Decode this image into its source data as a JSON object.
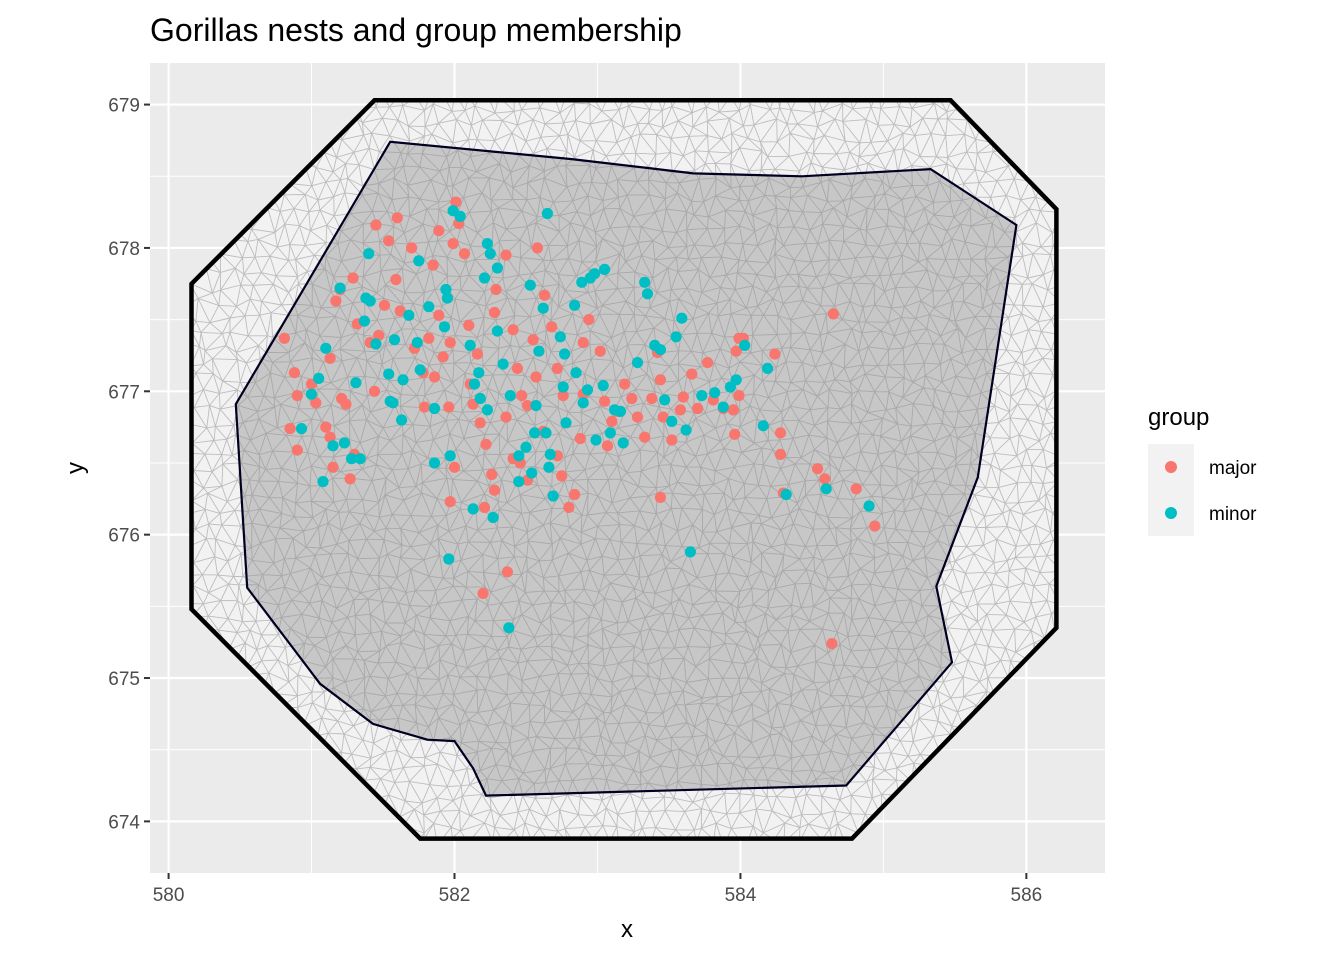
{
  "chart_data": {
    "type": "scatter",
    "title": "Gorillas nests and group membership",
    "xlabel": "x",
    "ylabel": "y",
    "xlim": [
      579.87,
      586.55
    ],
    "ylim": [
      673.64,
      679.29
    ],
    "x_ticks": [
      580,
      582,
      584,
      586
    ],
    "y_ticks": [
      674,
      675,
      676,
      677,
      678,
      679
    ],
    "x_tick_labels": [
      "580",
      "582",
      "584",
      "586"
    ],
    "y_tick_labels": [
      "674",
      "675",
      "676",
      "677",
      "678",
      "679"
    ],
    "grid": true,
    "legend": {
      "title": "group",
      "position": "right",
      "entries": [
        {
          "label": "major",
          "color": "#F8766D"
        },
        {
          "label": "minor",
          "color": "#00BFC4"
        }
      ]
    },
    "outer_boundary": [
      [
        580.16,
        677.75
      ],
      [
        581.44,
        679.03
      ],
      [
        585.47,
        679.03
      ],
      [
        586.21,
        678.27
      ],
      [
        586.21,
        675.35
      ],
      [
        584.78,
        673.88
      ],
      [
        581.76,
        673.88
      ],
      [
        580.16,
        675.48
      ]
    ],
    "inner_region": [
      [
        580.47,
        676.91
      ],
      [
        581.55,
        678.74
      ],
      [
        582.82,
        678.62
      ],
      [
        583.67,
        678.52
      ],
      [
        584.43,
        678.5
      ],
      [
        585.33,
        678.55
      ],
      [
        585.93,
        678.16
      ],
      [
        585.66,
        676.4
      ],
      [
        585.37,
        675.64
      ],
      [
        585.48,
        675.11
      ],
      [
        584.74,
        674.25
      ],
      [
        582.22,
        674.18
      ],
      [
        582.13,
        674.37
      ],
      [
        582.0,
        674.56
      ],
      [
        581.81,
        674.57
      ],
      [
        581.43,
        674.68
      ],
      [
        581.06,
        674.96
      ],
      [
        580.55,
        675.63
      ]
    ],
    "series": [
      {
        "name": "major",
        "color": "#F8766D",
        "points": [
          [
            580.81,
            677.37
          ],
          [
            580.88,
            677.13
          ],
          [
            580.9,
            676.97
          ],
          [
            580.85,
            676.74
          ],
          [
            580.9,
            676.59
          ],
          [
            581.0,
            677.05
          ],
          [
            581.03,
            676.92
          ],
          [
            581.1,
            676.75
          ],
          [
            581.13,
            676.68
          ],
          [
            581.15,
            676.47
          ],
          [
            581.21,
            676.95
          ],
          [
            581.24,
            676.91
          ],
          [
            581.27,
            676.39
          ],
          [
            581.3,
            676.56
          ],
          [
            581.13,
            677.23
          ],
          [
            581.17,
            677.63
          ],
          [
            581.2,
            677.71
          ],
          [
            581.29,
            677.79
          ],
          [
            581.32,
            677.47
          ],
          [
            581.41,
            677.34
          ],
          [
            581.44,
            677.0
          ],
          [
            581.47,
            677.39
          ],
          [
            581.45,
            678.16
          ],
          [
            581.54,
            678.05
          ],
          [
            581.6,
            678.21
          ],
          [
            581.62,
            677.56
          ],
          [
            581.72,
            677.3
          ],
          [
            581.78,
            677.13
          ],
          [
            581.82,
            677.37
          ],
          [
            581.7,
            678.0
          ],
          [
            581.85,
            677.88
          ],
          [
            581.89,
            677.53
          ],
          [
            581.92,
            677.24
          ],
          [
            581.97,
            677.34
          ],
          [
            581.96,
            676.89
          ],
          [
            581.86,
            677.1
          ],
          [
            581.99,
            678.03
          ],
          [
            582.01,
            678.32
          ],
          [
            582.03,
            678.17
          ],
          [
            581.89,
            678.12
          ],
          [
            582.07,
            677.96
          ],
          [
            582.1,
            677.46
          ],
          [
            582.16,
            677.26
          ],
          [
            582.11,
            677.05
          ],
          [
            582.13,
            676.91
          ],
          [
            582.18,
            676.78
          ],
          [
            582.22,
            676.63
          ],
          [
            582.26,
            676.42
          ],
          [
            582.28,
            676.31
          ],
          [
            582.21,
            676.19
          ],
          [
            582.28,
            677.55
          ],
          [
            582.36,
            677.95
          ],
          [
            582.29,
            677.71
          ],
          [
            582.41,
            677.43
          ],
          [
            582.44,
            677.16
          ],
          [
            582.47,
            676.97
          ],
          [
            582.36,
            676.82
          ],
          [
            582.41,
            676.53
          ],
          [
            582.46,
            676.5
          ],
          [
            582.51,
            676.38
          ],
          [
            582.51,
            676.9
          ],
          [
            582.55,
            677.36
          ],
          [
            582.57,
            677.1
          ],
          [
            582.58,
            678.0
          ],
          [
            582.63,
            677.67
          ],
          [
            582.68,
            677.45
          ],
          [
            582.72,
            677.16
          ],
          [
            582.76,
            676.97
          ],
          [
            582.62,
            676.72
          ],
          [
            582.72,
            676.55
          ],
          [
            582.75,
            676.41
          ],
          [
            582.8,
            676.19
          ],
          [
            582.84,
            676.28
          ],
          [
            582.88,
            676.67
          ],
          [
            582.9,
            676.98
          ],
          [
            582.9,
            677.34
          ],
          [
            582.94,
            677.5
          ],
          [
            583.02,
            677.28
          ],
          [
            583.05,
            676.93
          ],
          [
            583.1,
            676.79
          ],
          [
            583.07,
            676.62
          ],
          [
            583.14,
            676.86
          ],
          [
            583.19,
            677.05
          ],
          [
            583.24,
            676.95
          ],
          [
            583.28,
            676.82
          ],
          [
            583.33,
            676.68
          ],
          [
            583.38,
            676.95
          ],
          [
            583.42,
            677.27
          ],
          [
            583.44,
            677.08
          ],
          [
            583.46,
            676.82
          ],
          [
            583.52,
            676.66
          ],
          [
            583.58,
            676.87
          ],
          [
            583.6,
            676.96
          ],
          [
            583.66,
            677.12
          ],
          [
            583.7,
            676.88
          ],
          [
            583.77,
            677.2
          ],
          [
            583.81,
            676.94
          ],
          [
            583.88,
            676.88
          ],
          [
            583.95,
            676.87
          ],
          [
            583.99,
            677.37
          ],
          [
            584.02,
            677.37
          ],
          [
            583.97,
            677.28
          ],
          [
            583.99,
            676.97
          ],
          [
            583.96,
            676.7
          ],
          [
            584.24,
            677.26
          ],
          [
            584.28,
            676.71
          ],
          [
            584.28,
            676.56
          ],
          [
            584.3,
            676.29
          ],
          [
            584.54,
            676.46
          ],
          [
            584.59,
            676.39
          ],
          [
            584.65,
            677.54
          ],
          [
            584.81,
            676.32
          ],
          [
            584.94,
            676.06
          ],
          [
            584.64,
            675.24
          ],
          [
            583.44,
            676.26
          ],
          [
            582.37,
            675.74
          ],
          [
            582.2,
            675.59
          ],
          [
            581.97,
            676.23
          ],
          [
            581.79,
            676.89
          ],
          [
            581.59,
            677.78
          ],
          [
            581.51,
            677.6
          ],
          [
            582.0,
            676.47
          ]
        ]
      },
      {
        "name": "minor",
        "color": "#00BFC4",
        "points": [
          [
            580.93,
            676.74
          ],
          [
            581.0,
            676.98
          ],
          [
            581.05,
            677.09
          ],
          [
            581.08,
            676.37
          ],
          [
            581.1,
            677.3
          ],
          [
            581.15,
            676.62
          ],
          [
            581.2,
            677.72
          ],
          [
            581.23,
            676.64
          ],
          [
            581.28,
            676.53
          ],
          [
            581.31,
            677.06
          ],
          [
            581.34,
            676.53
          ],
          [
            581.37,
            677.49
          ],
          [
            581.38,
            677.65
          ],
          [
            581.41,
            677.63
          ],
          [
            581.4,
            677.96
          ],
          [
            581.55,
            676.93
          ],
          [
            581.54,
            677.12
          ],
          [
            581.57,
            676.92
          ],
          [
            581.63,
            676.8
          ],
          [
            581.68,
            677.53
          ],
          [
            581.74,
            677.34
          ],
          [
            581.75,
            677.91
          ],
          [
            581.82,
            677.59
          ],
          [
            581.86,
            676.88
          ],
          [
            581.94,
            677.71
          ],
          [
            581.95,
            677.65
          ],
          [
            581.99,
            678.26
          ],
          [
            582.04,
            678.22
          ],
          [
            581.97,
            676.55
          ],
          [
            581.86,
            676.5
          ],
          [
            581.96,
            675.83
          ],
          [
            582.11,
            677.32
          ],
          [
            582.14,
            677.05
          ],
          [
            582.18,
            676.95
          ],
          [
            582.21,
            677.79
          ],
          [
            582.23,
            678.03
          ],
          [
            582.25,
            677.96
          ],
          [
            582.3,
            677.86
          ],
          [
            582.3,
            677.42
          ],
          [
            582.34,
            677.19
          ],
          [
            582.39,
            676.97
          ],
          [
            582.45,
            676.55
          ],
          [
            582.5,
            676.61
          ],
          [
            582.54,
            676.43
          ],
          [
            582.56,
            676.71
          ],
          [
            582.57,
            676.9
          ],
          [
            582.59,
            677.28
          ],
          [
            582.62,
            677.58
          ],
          [
            582.64,
            676.71
          ],
          [
            582.67,
            676.56
          ],
          [
            582.69,
            676.27
          ],
          [
            582.66,
            676.47
          ],
          [
            582.74,
            677.38
          ],
          [
            582.76,
            677.03
          ],
          [
            582.78,
            676.78
          ],
          [
            582.84,
            677.6
          ],
          [
            582.85,
            677.13
          ],
          [
            582.89,
            677.76
          ],
          [
            582.9,
            676.92
          ],
          [
            582.93,
            677.01
          ],
          [
            582.95,
            677.79
          ],
          [
            582.98,
            677.82
          ],
          [
            582.99,
            676.66
          ],
          [
            583.04,
            677.04
          ],
          [
            583.09,
            676.71
          ],
          [
            583.18,
            676.64
          ],
          [
            583.16,
            676.86
          ],
          [
            583.28,
            677.2
          ],
          [
            583.33,
            677.76
          ],
          [
            583.35,
            677.68
          ],
          [
            583.4,
            677.32
          ],
          [
            583.44,
            677.29
          ],
          [
            583.47,
            676.94
          ],
          [
            583.52,
            676.79
          ],
          [
            583.55,
            677.38
          ],
          [
            583.59,
            677.51
          ],
          [
            583.62,
            676.73
          ],
          [
            583.65,
            675.88
          ],
          [
            583.73,
            676.97
          ],
          [
            583.82,
            676.99
          ],
          [
            583.88,
            676.89
          ],
          [
            583.93,
            677.03
          ],
          [
            583.97,
            677.08
          ],
          [
            584.03,
            677.32
          ],
          [
            584.16,
            676.76
          ],
          [
            584.19,
            677.16
          ],
          [
            584.32,
            676.28
          ],
          [
            584.6,
            676.32
          ],
          [
            584.9,
            676.2
          ],
          [
            582.38,
            675.35
          ],
          [
            582.13,
            676.18
          ],
          [
            582.27,
            676.12
          ],
          [
            582.45,
            676.37
          ],
          [
            582.65,
            678.24
          ],
          [
            582.53,
            677.74
          ],
          [
            583.05,
            677.85
          ],
          [
            583.12,
            676.87
          ],
          [
            582.77,
            677.26
          ],
          [
            581.45,
            677.33
          ],
          [
            581.58,
            677.36
          ],
          [
            581.64,
            677.08
          ],
          [
            581.76,
            677.15
          ],
          [
            581.93,
            677.45
          ],
          [
            582.17,
            677.13
          ],
          [
            582.23,
            676.87
          ]
        ]
      }
    ]
  }
}
